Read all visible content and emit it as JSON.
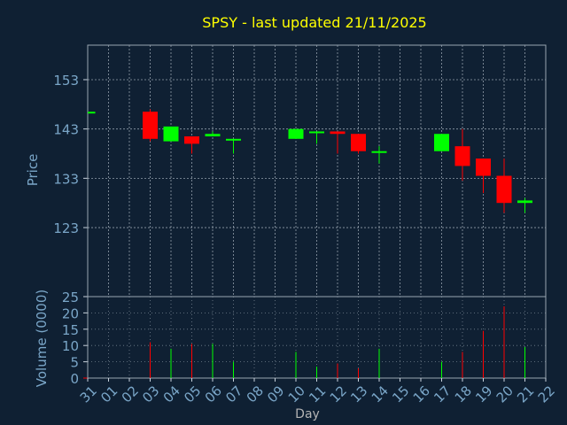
{
  "chart_data": {
    "type": "candlestick",
    "title": "SPSY - last updated 21/11/2025",
    "xlabel": "Day",
    "x_ticks": [
      "31",
      "01",
      "02",
      "03",
      "04",
      "05",
      "06",
      "07",
      "08",
      "09",
      "10",
      "11",
      "12",
      "13",
      "14",
      "15",
      "16",
      "17",
      "18",
      "19",
      "20",
      "21",
      "22"
    ],
    "price_panel": {
      "ylabel": "Price",
      "ylim": [
        109,
        160
      ],
      "y_ticks": [
        123,
        133,
        143,
        153
      ],
      "candles": [
        {
          "day": "31",
          "open": 146.5,
          "high": 146.5,
          "low": 146.5,
          "close": 146.5
        },
        {
          "day": "03",
          "open": 146.5,
          "high": 147.0,
          "low": 140.5,
          "close": 141.0
        },
        {
          "day": "04",
          "open": 140.5,
          "high": 143.5,
          "low": 140.5,
          "close": 143.5
        },
        {
          "day": "05",
          "open": 141.5,
          "high": 141.5,
          "low": 138.0,
          "close": 140.0
        },
        {
          "day": "06",
          "open": 141.5,
          "high": 142.5,
          "low": 141.5,
          "close": 142.0
        },
        {
          "day": "07",
          "open": 141.0,
          "high": 141.0,
          "low": 138.0,
          "close": 141.0
        },
        {
          "day": "10",
          "open": 141.0,
          "high": 143.0,
          "low": 141.0,
          "close": 143.0
        },
        {
          "day": "11",
          "open": 142.5,
          "high": 142.5,
          "low": 140.0,
          "close": 142.5
        },
        {
          "day": "12",
          "open": 142.5,
          "high": 142.5,
          "low": 138.0,
          "close": 142.0
        },
        {
          "day": "13",
          "open": 142.0,
          "high": 142.0,
          "low": 138.0,
          "close": 138.5
        },
        {
          "day": "14",
          "open": 138.5,
          "high": 139.5,
          "low": 136.0,
          "close": 138.5
        },
        {
          "day": "17",
          "open": 138.5,
          "high": 142.0,
          "low": 138.5,
          "close": 142.0
        },
        {
          "day": "18",
          "open": 139.5,
          "high": 143.0,
          "low": 132.5,
          "close": 135.5
        },
        {
          "day": "19",
          "open": 137.0,
          "high": 137.0,
          "low": 130.0,
          "close": 133.5
        },
        {
          "day": "20",
          "open": 133.5,
          "high": 137.0,
          "low": 126.0,
          "close": 128.0
        },
        {
          "day": "21",
          "open": 128.0,
          "high": 129.0,
          "low": 126.0,
          "close": 128.5
        }
      ]
    },
    "volume_panel": {
      "ylabel": "Volume (0000)",
      "ylim": [
        0,
        25
      ],
      "y_ticks": [
        0,
        5,
        10,
        15,
        20,
        25
      ],
      "bars": [
        {
          "day": "31",
          "volume": 0,
          "direction": "none"
        },
        {
          "day": "03",
          "volume": 11,
          "direction": "down"
        },
        {
          "day": "04",
          "volume": 9,
          "direction": "up"
        },
        {
          "day": "05",
          "volume": 10.5,
          "direction": "down"
        },
        {
          "day": "06",
          "volume": 10.5,
          "direction": "up"
        },
        {
          "day": "07",
          "volume": 5,
          "direction": "up"
        },
        {
          "day": "10",
          "volume": 8,
          "direction": "up"
        },
        {
          "day": "11",
          "volume": 3.5,
          "direction": "up"
        },
        {
          "day": "12",
          "volume": 4.5,
          "direction": "down"
        },
        {
          "day": "13",
          "volume": 3,
          "direction": "down"
        },
        {
          "day": "14",
          "volume": 9,
          "direction": "up"
        },
        {
          "day": "17",
          "volume": 5,
          "direction": "up"
        },
        {
          "day": "18",
          "volume": 8,
          "direction": "down"
        },
        {
          "day": "19",
          "volume": 14.5,
          "direction": "down"
        },
        {
          "day": "20",
          "volume": 22,
          "direction": "down"
        },
        {
          "day": "21",
          "volume": 9.5,
          "direction": "up"
        }
      ]
    },
    "grid": true,
    "colors": {
      "background": "#0f2033",
      "up": "#00ff00",
      "down": "#ff0000",
      "title": "#ffff00",
      "text": "#7aa6c8",
      "grid": "#c8d2dc",
      "axis_label": "#b4b4b4",
      "volume_zero_tick": "#ff0000"
    }
  }
}
